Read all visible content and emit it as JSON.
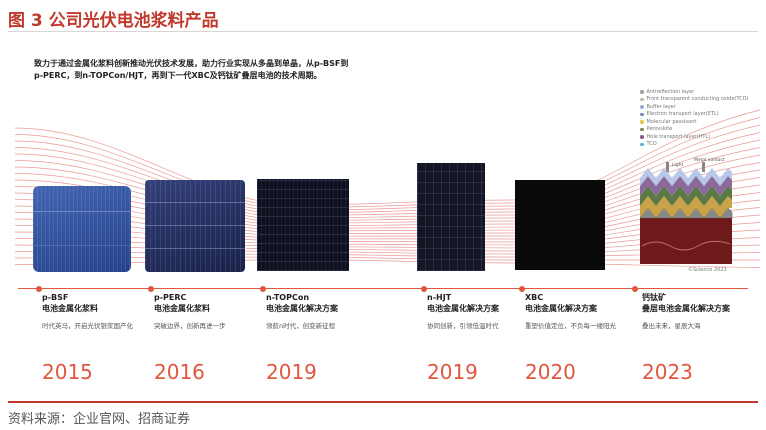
{
  "figure": {
    "title": "图 3 公司光伏电池浆料产品"
  },
  "intro": {
    "line1": "致力于通过金属化浆料创新推动光伏技术发展，助力行业实现从多晶到单晶，从p-BSF到",
    "line2": "p-PERC，到n-TOPCon/HJT，再到下一代XBC及钙钛矿叠层电池的技术周期。"
  },
  "perovskite_figure": {
    "legend": [
      {
        "label": "Antireflection layer",
        "color": "#a89f91"
      },
      {
        "label": "Front transparent conducting oxide(TCO)",
        "color": "#c7b9a2"
      },
      {
        "label": "Buffer layer",
        "color": "#9aaed4"
      },
      {
        "label": "Electron transport layer(ETL)",
        "color": "#6f88c4"
      },
      {
        "label": "Molecular passivant",
        "color": "#e0c850"
      },
      {
        "label": "Perovskite",
        "color": "#7a8a52"
      },
      {
        "label": "Hole transport layer(HTL)",
        "color": "#8c5a8c"
      },
      {
        "label": "TCO",
        "color": "#5ab0c8"
      }
    ],
    "light_label": "Light",
    "contact_label": "Metal contact",
    "credit": "©Science 2023"
  },
  "milestones": [
    {
      "name": "p-BSF",
      "subtitle": "电池金属化浆料",
      "desc": "时代英马，开启光伏银浆国产化",
      "year": "2015"
    },
    {
      "name": "p-PERC",
      "subtitle": "电池金属化浆料",
      "desc": "突破边界，创新再进一步",
      "year": "2016"
    },
    {
      "name": "n-TOPCon",
      "subtitle": "电池金属化解决方案",
      "desc": "领航n时代，创变新征程",
      "year": "2019"
    },
    {
      "name": "n-HJT",
      "subtitle": "电池金属化解决方案",
      "desc": "协同创新，引领低温时代",
      "year": "2019"
    },
    {
      "name": "XBC",
      "subtitle": "电池金属化解决方案",
      "desc": "重塑价值定位，不负每一缕阳光",
      "year": "2020"
    },
    {
      "name": "钙钛矿",
      "subtitle": "叠层电池金属化解决方案",
      "desc": "叠出未来，星辰大海",
      "year": "2023"
    }
  ],
  "source": "资料来源：企业官网、招商证券",
  "colors": {
    "accent": "#e0563f",
    "title": "#c0392b"
  }
}
